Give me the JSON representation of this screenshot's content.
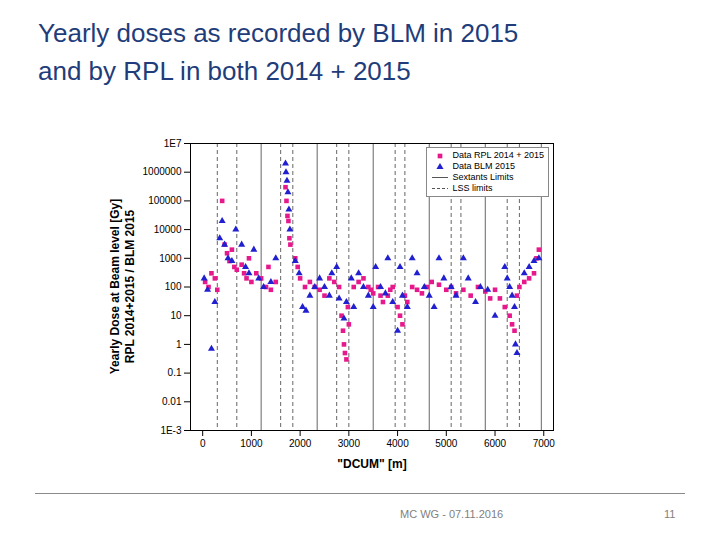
{
  "chart_data": {
    "type": "scatter",
    "title": "Yearly doses as recorded by BLM in 2015\nand by RPL in both 2014 + 2015",
    "xlabel": "\"DCUM\" [m]",
    "ylabel": [
      "Yearly Dose at Beam level [Gy]",
      "RPL 2014+2015 / BLM 2015"
    ],
    "xlim": [
      -250,
      7200
    ],
    "xticks": [
      0,
      1000,
      2000,
      3000,
      4000,
      5000,
      6000,
      7000
    ],
    "ylim": [
      0.001,
      10000000
    ],
    "yticks": [
      {
        "value": 0.001,
        "label": "1E-3"
      },
      0.01,
      0.1,
      1,
      10,
      100,
      1000,
      10000,
      100000,
      1000000,
      {
        "value": 10000000,
        "label": "1E7"
      }
    ],
    "log": "y",
    "grid": false,
    "legend": "top-right",
    "series": [
      {
        "name": "Data RPL 2014 + 2015",
        "type": "scatter",
        "marker": "square",
        "color": "#e6198c",
        "x": [
          50,
          120,
          180,
          250,
          300,
          400,
          450,
          500,
          550,
          600,
          650,
          700,
          800,
          850,
          900,
          950,
          1000,
          1100,
          1200,
          1300,
          1350,
          1400,
          1500,
          1700,
          1720,
          1740,
          1760,
          1780,
          1800,
          1900,
          1950,
          2000,
          2100,
          2200,
          2300,
          2400,
          2500,
          2600,
          2700,
          2800,
          2850,
          2880,
          2900,
          2920,
          2950,
          2980,
          3000,
          3100,
          3200,
          3300,
          3400,
          3450,
          3500,
          3600,
          3650,
          3700,
          3800,
          3850,
          3900,
          4000,
          4050,
          4100,
          4150,
          4200,
          4300,
          4400,
          4500,
          4600,
          4700,
          4850,
          5000,
          5100,
          5200,
          5350,
          5500,
          5650,
          5800,
          5900,
          6000,
          6100,
          6200,
          6300,
          6350,
          6400,
          6450,
          6500,
          6600,
          6700,
          6800,
          6850,
          6900
        ],
        "values": [
          150,
          100,
          300,
          200,
          80,
          100000,
          3000,
          1500,
          800,
          2000,
          500,
          400,
          600,
          300,
          200,
          1000,
          150,
          300,
          200,
          100,
          500,
          80,
          150,
          300000,
          100000,
          30000,
          20000,
          5000,
          3000,
          1000,
          500,
          200,
          100,
          150,
          100,
          80,
          50,
          200,
          150,
          100,
          10,
          3,
          1,
          0.5,
          0.3,
          20,
          5,
          100,
          150,
          200,
          100,
          80,
          60,
          100,
          50,
          30,
          50,
          80,
          100,
          20,
          10,
          5,
          50,
          30,
          100,
          80,
          60,
          100,
          150,
          120,
          80,
          100,
          60,
          80,
          50,
          100,
          70,
          40,
          80,
          40,
          20,
          10,
          5,
          3,
          50,
          100,
          150,
          200,
          300,
          1000,
          2000
        ]
      },
      {
        "name": "Data BLM 2015",
        "type": "scatter",
        "marker": "triangle",
        "color": "#2020d0",
        "x": [
          30,
          100,
          180,
          250,
          350,
          400,
          450,
          520,
          600,
          680,
          800,
          880,
          950,
          1050,
          1150,
          1250,
          1400,
          1500,
          1700,
          1710,
          1730,
          1750,
          1770,
          1790,
          1900,
          1980,
          2050,
          2120,
          2200,
          2300,
          2400,
          2500,
          2600,
          2650,
          2750,
          2800,
          2900,
          2950,
          3050,
          3100,
          3200,
          3300,
          3400,
          3500,
          3550,
          3650,
          3750,
          3800,
          3900,
          4000,
          4050,
          4100,
          4200,
          4300,
          4400,
          4550,
          4650,
          4750,
          4850,
          4950,
          5100,
          5200,
          5350,
          5450,
          5600,
          5700,
          5850,
          6000,
          6200,
          6250,
          6300,
          6350,
          6400,
          6420,
          6450,
          6600,
          6700,
          6800,
          6900
        ],
        "values": [
          200,
          80,
          0.7,
          30,
          5000,
          20000,
          3000,
          1000,
          800,
          10000,
          3000,
          500,
          300,
          2000,
          200,
          100,
          150,
          1000,
          2000000,
          1000000,
          500000,
          200000,
          50000,
          10000,
          800,
          300,
          20,
          15,
          50,
          100,
          200,
          100,
          50,
          300,
          500,
          40,
          8,
          30,
          200,
          20,
          300,
          100,
          50,
          20,
          500,
          100,
          60,
          1000,
          30,
          3,
          500,
          50,
          20,
          1000,
          300,
          100,
          50,
          20,
          1000,
          200,
          100,
          50,
          1000,
          200,
          30,
          100,
          80,
          10,
          500,
          200,
          100,
          50,
          20,
          1,
          0.5,
          300,
          500,
          800,
          1000
        ]
      },
      {
        "name": "Sextants Limits",
        "type": "vline",
        "line_style": "solid",
        "color": "#555555",
        "x": [
          1200,
          2350,
          3500,
          4650,
          5800,
          6950
        ]
      },
      {
        "name": "LSS limits",
        "type": "vline",
        "line_style": "dashed",
        "color": "#555555",
        "x": [
          300,
          700,
          1600,
          1850,
          2750,
          3000,
          3950,
          4150,
          5100,
          5300,
          6250,
          6500
        ]
      }
    ]
  },
  "slide": {
    "footer": "MC WG - 07.11.2016",
    "page": 11
  }
}
